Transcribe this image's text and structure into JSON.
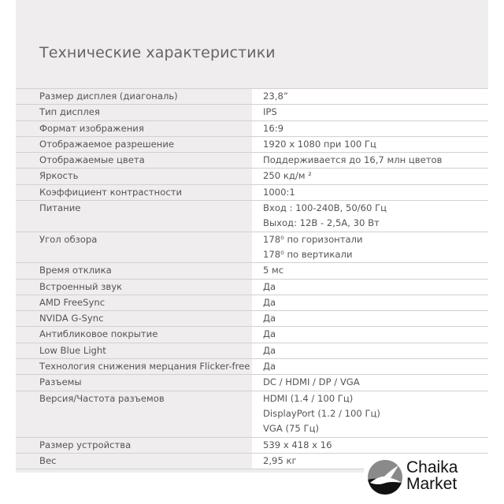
{
  "title": "Технические характеристики",
  "rows": [
    {
      "key": "Размер дисплея (диагональ)",
      "values": [
        "23,8”"
      ]
    },
    {
      "key": "Тип дисплея",
      "values": [
        "IPS"
      ]
    },
    {
      "key": "Формат изображения",
      "values": [
        "16:9"
      ]
    },
    {
      "key": "Отображаемое разрешение",
      "values": [
        "1920 x 1080 при 100 Гц"
      ]
    },
    {
      "key": "Отображаемые цвета",
      "values": [
        "Поддерживается до 16,7 млн цветов"
      ]
    },
    {
      "key": "Яркость",
      "values": [
        "250 кд/м ²"
      ]
    },
    {
      "key": "Коэффициент контрастности",
      "values": [
        "1000:1"
      ]
    },
    {
      "key": "Питание",
      "values": [
        "Вход : 100-240В, 50/60 Гц",
        "Выход: 12В - 2,5А, 30 Вт"
      ]
    },
    {
      "key": "Угол обзора",
      "values": [
        "178⁰ по горизонтали",
        "178⁰ по вертикали"
      ]
    },
    {
      "key": "Время отклика",
      "values": [
        "5 мс"
      ]
    },
    {
      "key": "Встроенный звук",
      "values": [
        "Да"
      ]
    },
    {
      "key": "AMD FreeSync",
      "values": [
        "Да"
      ]
    },
    {
      "key": "NVIDA G-Sync",
      "values": [
        "Да"
      ]
    },
    {
      "key": "Антибликовое покрытие",
      "values": [
        "Да"
      ]
    },
    {
      "key": "Low Blue Light",
      "values": [
        "Да"
      ]
    },
    {
      "key": "Технология снижения мерцания Flicker-free",
      "values": [
        "Да"
      ]
    },
    {
      "key": "Разъемы",
      "values": [
        "DC / HDMI / DP / VGA"
      ]
    },
    {
      "key": "Версия/Частота разъемов",
      "values": [
        "HDMI (1.4 / 100 Гц)",
        "DisplayPort (1.2 / 100 Гц)",
        "VGA (75 Гц)"
      ]
    },
    {
      "key": "Размер устройства",
      "values": [
        "539 x 418 x 16"
      ]
    },
    {
      "key": "Вес",
      "values": [
        "2,95 кг"
      ]
    }
  ],
  "logo": {
    "line1": "Chaika",
    "line2": "Market",
    "icon": "seagull-circle-icon"
  }
}
